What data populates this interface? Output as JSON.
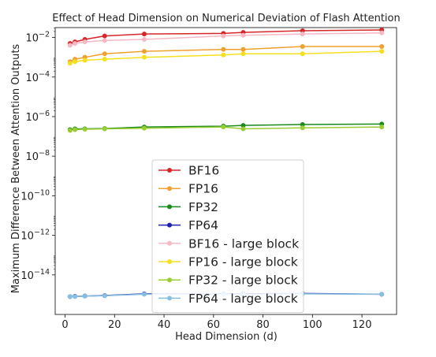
{
  "chart_data": {
    "type": "line",
    "title": "Effect of Head Dimension on Numerical Deviation of Flash Attention",
    "xlabel": "Head Dimension (d)",
    "ylabel": "Maximum Difference Between Attention Outputs",
    "xlim": [
      -4,
      134
    ],
    "ylim_log10": [
      -16,
      -1.5
    ],
    "yscale": "log",
    "x_ticks": [
      0,
      20,
      40,
      60,
      80,
      100,
      120
    ],
    "y_ticks": [
      {
        "exp": -2,
        "label": "10",
        "sup": "−2"
      },
      {
        "exp": -4,
        "label": "10",
        "sup": "−4"
      },
      {
        "exp": -6,
        "label": "10",
        "sup": "−6"
      },
      {
        "exp": -8,
        "label": "10",
        "sup": "−8"
      },
      {
        "exp": -10,
        "label": "10",
        "sup": "−10"
      },
      {
        "exp": -12,
        "label": "10",
        "sup": "−12"
      },
      {
        "exp": -14,
        "label": "10",
        "sup": "−14"
      }
    ],
    "grid": false,
    "legend_placement": "center-bottom",
    "x": [
      2,
      4,
      8,
      16,
      32,
      64,
      72,
      96,
      128
    ],
    "series": [
      {
        "name": "BF16",
        "color": "#d62728",
        "values": [
          0.005,
          0.006,
          0.008,
          0.012,
          0.015,
          0.016,
          0.018,
          0.022,
          0.024
        ]
      },
      {
        "name": "FP16",
        "color": "#f0a030",
        "values": [
          0.0006,
          0.0008,
          0.001,
          0.0015,
          0.002,
          0.0025,
          0.0025,
          0.0035,
          0.0035
        ]
      },
      {
        "name": "FP32",
        "color": "#1a8a1a",
        "values": [
          2.2e-07,
          2.4e-07,
          2.4e-07,
          2.5e-07,
          3e-07,
          3.3e-07,
          3.6e-07,
          4e-07,
          4.2e-07
        ]
      },
      {
        "name": "FP64",
        "color": "#1f1fb4",
        "values": [
          8e-16,
          8.2e-16,
          8.5e-16,
          9e-16,
          1.1e-15,
          1.1e-15,
          1.1e-15,
          1.15e-15,
          1.05e-15
        ]
      },
      {
        "name": "BF16 - large block",
        "color": "#f5b8c4",
        "values": [
          0.004,
          0.005,
          0.006,
          0.007,
          0.008,
          0.012,
          0.013,
          0.015,
          0.017
        ]
      },
      {
        "name": "FP16 - large block",
        "color": "#f5e020",
        "values": [
          0.0005,
          0.0006,
          0.0007,
          0.0008,
          0.001,
          0.0013,
          0.0015,
          0.0015,
          0.002
        ]
      },
      {
        "name": "FP32 - large block",
        "color": "#9acd32",
        "values": [
          2e-07,
          2.2e-07,
          2.3e-07,
          2.4e-07,
          2.6e-07,
          3e-07,
          2.4e-07,
          2.7e-07,
          3e-07
        ]
      },
      {
        "name": "FP64 - large block",
        "color": "#87bfe0",
        "values": [
          8e-16,
          8e-16,
          8.3e-16,
          8.8e-16,
          1.05e-15,
          1.05e-15,
          1e-15,
          1.1e-15,
          1.05e-15
        ]
      }
    ]
  }
}
